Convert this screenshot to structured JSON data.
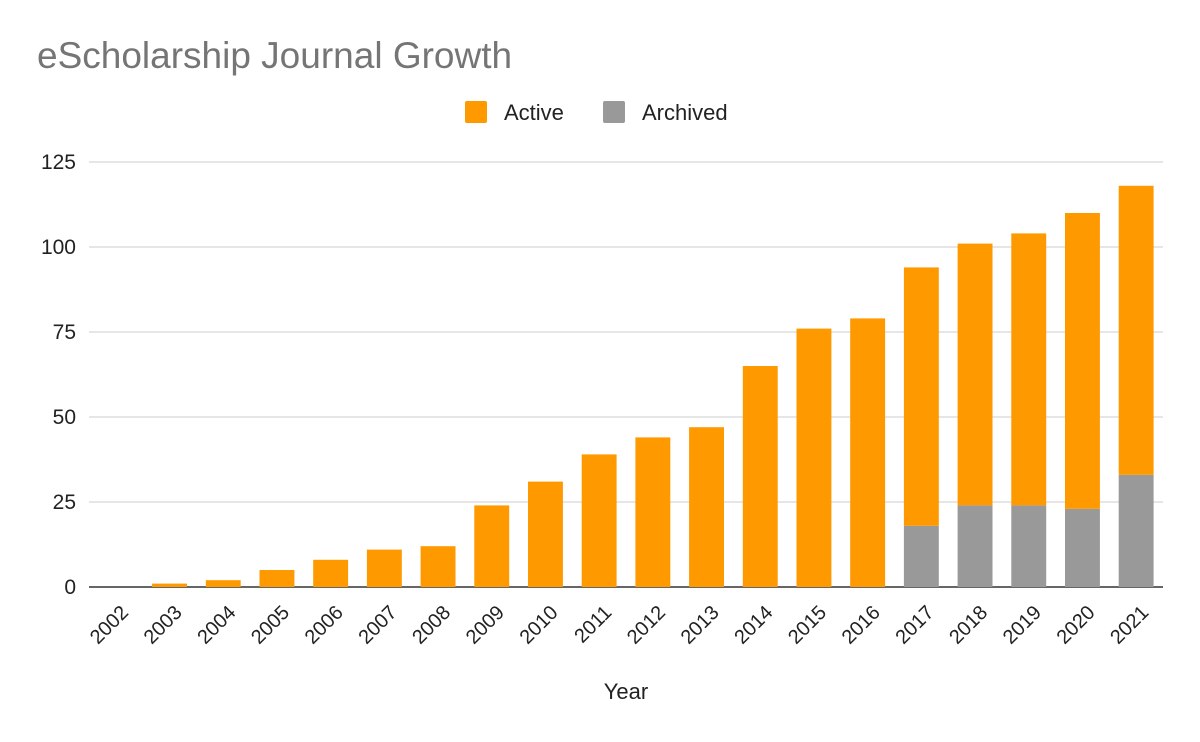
{
  "chart_data": {
    "type": "bar",
    "stacked": true,
    "title": "eScholarship Journal Growth",
    "xlabel": "Year",
    "ylabel": "",
    "ylim": [
      0,
      125
    ],
    "yticks": [
      0,
      25,
      50,
      75,
      100,
      125
    ],
    "grid": true,
    "legend_position": "top",
    "categories": [
      "2002",
      "2003",
      "2004",
      "2005",
      "2006",
      "2007",
      "2008",
      "2009",
      "2010",
      "2011",
      "2012",
      "2013",
      "2014",
      "2015",
      "2016",
      "2017",
      "2018",
      "2019",
      "2020",
      "2021"
    ],
    "series": [
      {
        "name": "Archived",
        "color": "#999999",
        "values": [
          0,
          0,
          0,
          0,
          0,
          0,
          0,
          0,
          0,
          0,
          0,
          0,
          0,
          0,
          0,
          18,
          24,
          24,
          23,
          33
        ]
      },
      {
        "name": "Active",
        "color": "#ff9900",
        "values": [
          0,
          1,
          2,
          5,
          8,
          11,
          12,
          24,
          31,
          39,
          44,
          47,
          65,
          76,
          79,
          76,
          77,
          80,
          87,
          85
        ]
      }
    ]
  }
}
